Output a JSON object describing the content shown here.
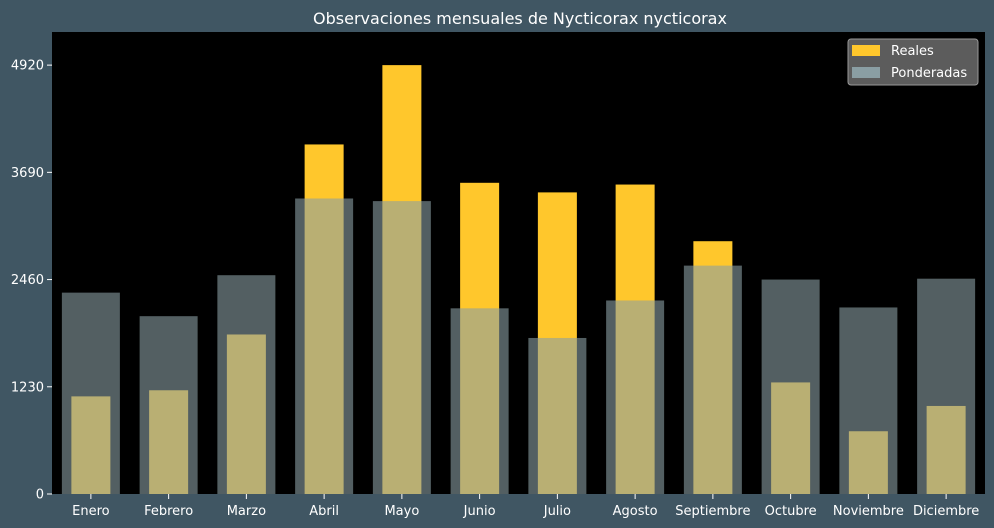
{
  "chart_data": {
    "type": "bar",
    "title": "Observaciones mensuales de Nycticorax nycticorax",
    "xlabel": "",
    "ylabel": "",
    "categories": [
      "Enero",
      "Febrero",
      "Marzo",
      "Abril",
      "Mayo",
      "Junio",
      "Julio",
      "Agosto",
      "Septiembre",
      "Octubre",
      "Noviembre",
      "Diciembre"
    ],
    "series": [
      {
        "name": "Reales",
        "color": "#ffc72c",
        "values": [
          1120,
          1190,
          1830,
          4010,
          4920,
          3570,
          3460,
          3550,
          2900,
          1280,
          720,
          1010
        ]
      },
      {
        "name": "Ponderadas",
        "color": "#8a9ea3",
        "values": [
          2310,
          2040,
          2510,
          3390,
          3360,
          2130,
          1790,
          2220,
          2620,
          2460,
          2140,
          2470
        ]
      }
    ],
    "ylim": [
      0,
      5300
    ],
    "yticks": [
      0,
      1230,
      2460,
      3690,
      4920
    ],
    "grid": false,
    "legend_position": "top-right",
    "plot_background": "#000000",
    "figure_background": "#405663"
  }
}
